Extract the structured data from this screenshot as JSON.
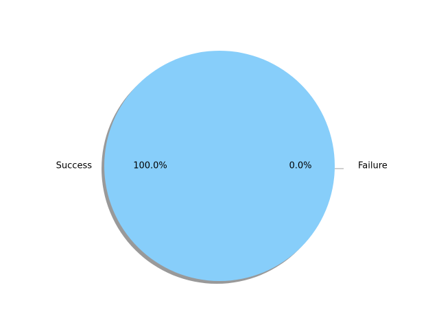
{
  "chart_data": {
    "type": "pie",
    "categories": [
      "Success",
      "Failure"
    ],
    "values": [
      100.0,
      0.0
    ],
    "percent_labels": [
      "100.0%",
      "0.0%"
    ],
    "colors": [
      "#87cefa",
      "#fa8072"
    ],
    "shadow": true,
    "explode": [
      0,
      0.1
    ],
    "title": "",
    "legend": "none"
  }
}
